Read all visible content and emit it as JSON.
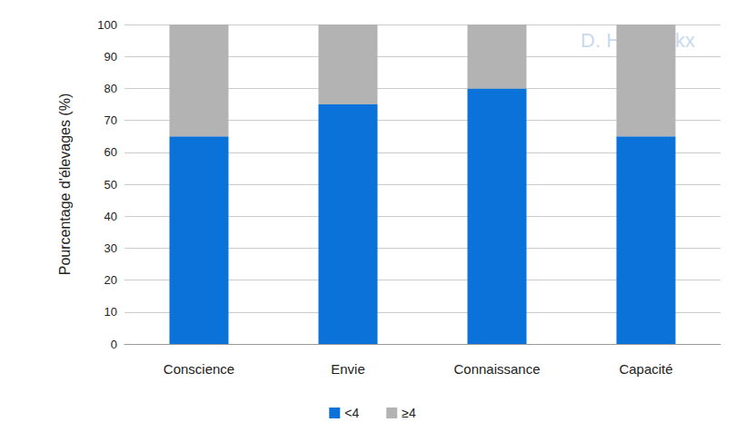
{
  "chart_data": {
    "type": "bar",
    "y_label": "Pourcentage d'élevages (%)",
    "categories": [
      "Conscience",
      "Envie",
      "Connaissance",
      "Capacité"
    ],
    "series": [
      {
        "name": "<4",
        "color": "#0b72d9",
        "values": [
          65,
          75,
          80,
          65
        ]
      },
      {
        "name": "≥4",
        "color": "#b3b3b3",
        "values": [
          35,
          25,
          20,
          35
        ]
      }
    ],
    "ylim": [
      0,
      100
    ],
    "yticks": [
      0,
      10,
      20,
      30,
      40,
      50,
      60,
      70,
      80,
      90,
      100
    ],
    "stacked": true,
    "grid": true,
    "legend": "bottom",
    "annotations": [
      "D. Hendrickx"
    ]
  }
}
